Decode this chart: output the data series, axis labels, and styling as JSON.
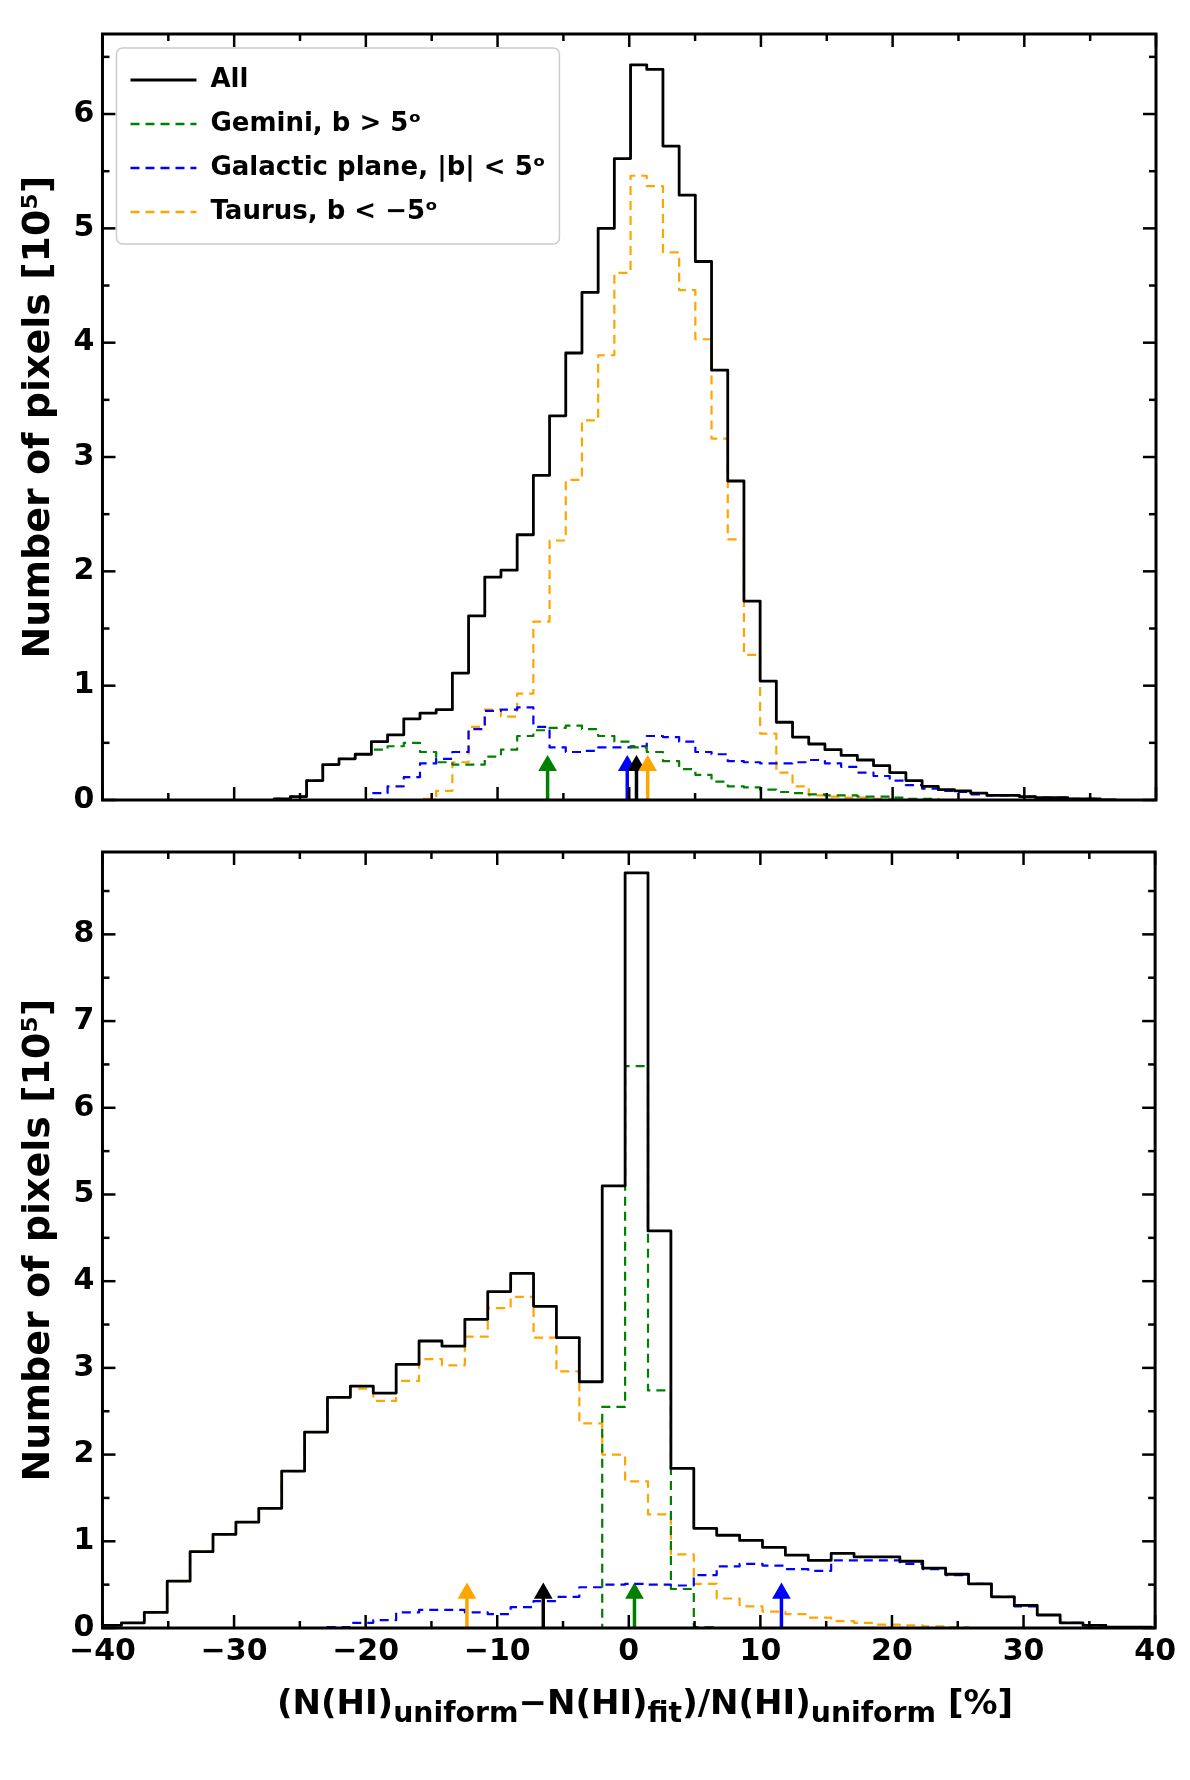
{
  "chart_data": [
    {
      "type": "histogram",
      "ylabel": "Number of pixels [10⁵]",
      "legend": "top left",
      "tick_labels": "y",
      "bins": [
        -26.96,
        -25.73,
        -24.5,
        -23.27,
        -22.04,
        -20.81,
        -19.58,
        -18.35,
        -17.12,
        -15.89,
        -14.66,
        -13.43,
        -12.2,
        -10.97,
        -9.74,
        -8.51,
        -7.28,
        -6.05,
        -4.82,
        -3.59,
        -2.36,
        -1.13,
        0.1,
        1.33,
        2.56,
        3.79,
        5.02,
        6.25,
        7.48,
        8.71,
        9.94,
        11.17,
        12.4,
        13.63,
        14.86,
        16.09,
        17.32,
        18.55,
        19.78,
        21.01,
        22.24,
        23.47,
        24.7,
        25.93,
        27.16,
        28.39,
        29.62,
        30.85,
        32.08,
        33.31,
        34.54,
        35.77,
        37.0
      ],
      "series": [
        {
          "name": "All",
          "color": "#000000",
          "line_style": "solid",
          "values": [
            0.01,
            0.03,
            0.17,
            0.31,
            0.36,
            0.4,
            0.51,
            0.57,
            0.71,
            0.76,
            0.79,
            1.11,
            1.61,
            1.95,
            2.01,
            2.32,
            2.84,
            3.36,
            3.91,
            4.44,
            5.0,
            5.61,
            6.43,
            6.39,
            5.72,
            5.29,
            4.71,
            3.76,
            2.79,
            1.74,
            1.04,
            0.68,
            0.55,
            0.49,
            0.44,
            0.39,
            0.35,
            0.3,
            0.24,
            0.17,
            0.12,
            0.09,
            0.08,
            0.06,
            0.04,
            0.04,
            0.03,
            0.02,
            0.02,
            0.01,
            0.01,
            0
          ]
        },
        {
          "name": "Gemini, b > 5ᵒ",
          "color": "#008000",
          "line_style": "dashed",
          "values": [
            0.01,
            0.03,
            0.17,
            0.31,
            0.36,
            0.4,
            0.44,
            0.47,
            0.5,
            0.42,
            0.33,
            0.31,
            0.31,
            0.38,
            0.44,
            0.56,
            0.61,
            0.63,
            0.65,
            0.62,
            0.56,
            0.51,
            0.46,
            0.42,
            0.34,
            0.27,
            0.22,
            0.16,
            0.12,
            0.11,
            0.09,
            0.07,
            0.06,
            0.05,
            0.04,
            0.04,
            0.03,
            0.03,
            0.02,
            0.01,
            0.01,
            0,
            0,
            0,
            0,
            0,
            0,
            0,
            0,
            0,
            0,
            0
          ]
        },
        {
          "name": "Galactic plane, |b| < 5ᵒ",
          "color": "#0000ff",
          "line_style": "dashed",
          "values": [
            0,
            0,
            0,
            0,
            0,
            0,
            0.06,
            0.12,
            0.2,
            0.32,
            0.36,
            0.42,
            0.62,
            0.78,
            0.79,
            0.81,
            0.64,
            0.46,
            0.42,
            0.43,
            0.46,
            0.46,
            0.47,
            0.56,
            0.55,
            0.51,
            0.42,
            0.4,
            0.34,
            0.33,
            0.32,
            0.32,
            0.33,
            0.35,
            0.32,
            0.29,
            0.24,
            0.21,
            0.17,
            0.13,
            0.1,
            0.08,
            0.07,
            0.05,
            0.04,
            0.04,
            0.03,
            0.02,
            0.02,
            0.01,
            0.01,
            0
          ]
        },
        {
          "name": "Taurus, b < −5ᵒ",
          "color": "#ffa500",
          "line_style": "dashed",
          "values": [
            0,
            0,
            0,
            0,
            0,
            0,
            0,
            0,
            0,
            0.01,
            0.08,
            0.33,
            0.64,
            0.79,
            0.73,
            0.93,
            1.56,
            2.27,
            2.8,
            3.32,
            3.89,
            4.61,
            5.46,
            5.37,
            4.79,
            4.46,
            4.03,
            3.16,
            2.28,
            1.27,
            0.58,
            0.24,
            0.12,
            0.04,
            0.03,
            0.02,
            0.02,
            0.01,
            0,
            0,
            0,
            0,
            0,
            0,
            0,
            0,
            0,
            0,
            0,
            0,
            0,
            0
          ]
        },
        {
          "type": "lollipop",
          "marker": "triangle",
          "x": [
            -6.2,
            -0.15,
            0.55,
            1.4
          ],
          "values": [
            0.3,
            0.3,
            0.3,
            0.3
          ],
          "colors": [
            "#008000",
            "#0000ff",
            "#000000",
            "#ffa500"
          ]
        }
      ],
      "xlim": [
        -40,
        40
      ],
      "xticks": [
        -40,
        {
          "value": -35,
          "label": null
        },
        -30,
        {
          "value": -25,
          "label": null
        },
        -20,
        {
          "value": -15,
          "label": null
        },
        -10,
        {
          "value": -5,
          "label": null
        },
        0,
        {
          "value": 5,
          "label": null
        },
        10,
        {
          "value": 15,
          "label": null
        },
        20,
        {
          "value": 25,
          "label": null
        },
        30,
        {
          "value": 35,
          "label": null
        },
        40
      ],
      "ylim": [
        0,
        6.7
      ],
      "yticks": [
        0,
        {
          "value": 0.5,
          "label": null
        },
        1,
        {
          "value": 1.5,
          "label": null
        },
        2,
        {
          "value": 2.5,
          "label": null
        },
        3,
        {
          "value": 3.5,
          "label": null
        },
        4,
        {
          "value": 4.5,
          "label": null
        },
        5,
        {
          "value": 5.5,
          "label": null
        },
        6,
        {
          "value": 6.5,
          "label": null
        }
      ],
      "marker": "none"
    },
    {
      "type": "histogram",
      "ylabel": "Number of pixels [10⁵]",
      "xlabel": "(N(HI)$_{uniform}$−N(HI)$_{fit}$)/N(HI)$_{uniform}$ [%]",
      "bins": [
        -40,
        -38.56,
        -36.82,
        -35.08,
        -33.34,
        -31.6,
        -29.86,
        -28.12,
        -26.38,
        -24.64,
        -22.9,
        -21.16,
        -19.42,
        -17.68,
        -15.94,
        -14.2,
        -12.46,
        -10.72,
        -8.98,
        -7.24,
        -5.5,
        -3.76,
        -2.02,
        -0.28,
        1.46,
        3.2,
        4.94,
        6.68,
        8.42,
        10.16,
        11.9,
        13.64,
        15.38,
        17.12,
        18.86,
        20.6,
        22.34,
        24.08,
        25.82,
        27.56,
        29.3,
        31.04,
        32.78,
        34.52,
        36.26,
        38.0,
        39.74
      ],
      "series": [
        {
          "color": "#000000",
          "line_style": "solid",
          "values": [
            0.03,
            0.06,
            0.18,
            0.54,
            0.88,
            1.08,
            1.22,
            1.38,
            1.81,
            2.26,
            2.66,
            2.79,
            2.71,
            3.04,
            3.31,
            3.25,
            3.56,
            3.88,
            4.09,
            3.71,
            3.35,
            2.84,
            5.1,
            8.71,
            4.58,
            1.84,
            1.15,
            1.07,
            1.01,
            0.93,
            0.84,
            0.78,
            0.86,
            0.82,
            0.82,
            0.77,
            0.69,
            0.62,
            0.51,
            0.36,
            0.26,
            0.15,
            0.06,
            0.03,
            0.01,
            0.01
          ]
        },
        {
          "color": "#008000",
          "line_style": "dashed",
          "values": [
            0,
            0,
            0,
            0,
            0,
            0,
            0,
            0,
            0,
            0,
            0,
            0,
            0,
            0,
            0,
            0,
            0,
            0,
            0,
            0,
            0,
            0,
            2.55,
            6.48,
            2.74,
            0.45,
            0.01,
            0,
            0,
            0,
            0,
            0,
            0,
            0,
            0,
            0,
            0,
            0,
            0,
            0,
            0,
            0,
            0,
            0,
            0,
            0
          ]
        },
        {
          "color": "#0000ff",
          "line_style": "dashed",
          "values": [
            0,
            0,
            0,
            0,
            0,
            0,
            0,
            0,
            0,
            0,
            0.01,
            0.06,
            0.09,
            0.18,
            0.21,
            0.21,
            0.18,
            0.16,
            0.24,
            0.31,
            0.36,
            0.47,
            0.5,
            0.51,
            0.5,
            0.49,
            0.61,
            0.71,
            0.74,
            0.72,
            0.68,
            0.66,
            0.78,
            0.78,
            0.78,
            0.74,
            0.68,
            0.61,
            0.51,
            0.36,
            0.25,
            0.15,
            0.06,
            0.03,
            0.01,
            0.01
          ]
        },
        {
          "color": "#ffa500",
          "line_style": "dashed",
          "values": [
            0.03,
            0.06,
            0.18,
            0.54,
            0.88,
            1.08,
            1.22,
            1.38,
            1.81,
            2.26,
            2.66,
            2.76,
            2.62,
            2.85,
            3.1,
            3.03,
            3.36,
            3.69,
            3.82,
            3.35,
            2.96,
            2.36,
            2.0,
            1.69,
            1.31,
            0.85,
            0.51,
            0.34,
            0.25,
            0.19,
            0.16,
            0.12,
            0.08,
            0.06,
            0.04,
            0.03,
            0.02,
            0.01,
            0,
            0,
            0,
            0,
            0,
            0,
            0,
            0
          ]
        },
        {
          "type": "lollipop",
          "marker": "triangle",
          "x": [
            -12.3,
            -6.5,
            0.43,
            11.6
          ],
          "values": [
            0.4,
            0.4,
            0.4,
            0.4
          ],
          "colors": [
            "#ffa500",
            "#000000",
            "#008000",
            "#0000ff"
          ]
        }
      ],
      "xlim": [
        -40,
        40
      ],
      "xticks": [
        {
          "value": -40,
          "label": "−40"
        },
        {
          "value": -35,
          "label": null
        },
        {
          "value": -30,
          "label": "−30"
        },
        {
          "value": -25,
          "label": null
        },
        {
          "value": -20,
          "label": "−20"
        },
        {
          "value": -15,
          "label": null
        },
        {
          "value": -10,
          "label": "−10"
        },
        {
          "value": -5,
          "label": null
        },
        0,
        {
          "value": 5,
          "label": null
        },
        10,
        {
          "value": 15,
          "label": null
        },
        20,
        {
          "value": 25,
          "label": null
        },
        30,
        {
          "value": 35,
          "label": null
        },
        40
      ],
      "ylim": [
        0,
        8.95
      ],
      "yticks": [
        0,
        {
          "value": 0.5,
          "label": null
        },
        1,
        {
          "value": 1.5,
          "label": null
        },
        2,
        {
          "value": 2.5,
          "label": null
        },
        3,
        {
          "value": 3.5,
          "label": null
        },
        4,
        {
          "value": 4.5,
          "label": null
        },
        5,
        {
          "value": 5.5,
          "label": null
        },
        6,
        {
          "value": 6.5,
          "label": null
        },
        7,
        {
          "value": 7.5,
          "label": null
        },
        8,
        {
          "value": 8.5,
          "label": null
        }
      ],
      "marker": "none"
    }
  ]
}
